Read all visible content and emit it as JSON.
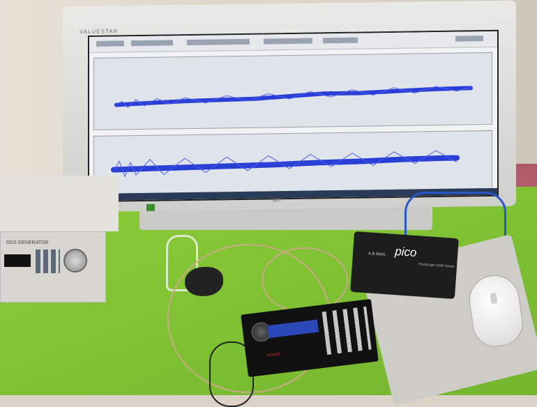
{
  "monitor": {
    "brand": "VALUESTAR",
    "bottom_label": "NEC"
  },
  "function_generator": {
    "label": "DDS GENERATOR"
  },
  "oscilloscope": {
    "logo": "pico",
    "model": "PicoScope 2000 Series",
    "inputs_label": "A  B  AWG"
  },
  "control_board": {
    "power_label": "POWER"
  },
  "colors": {
    "mat": "#7fc233",
    "waveform": "#2a3fd6",
    "lcd": "#2b48b8"
  },
  "icons": [
    "monitor-icon",
    "oscilloscope-icon",
    "mouse-icon"
  ]
}
